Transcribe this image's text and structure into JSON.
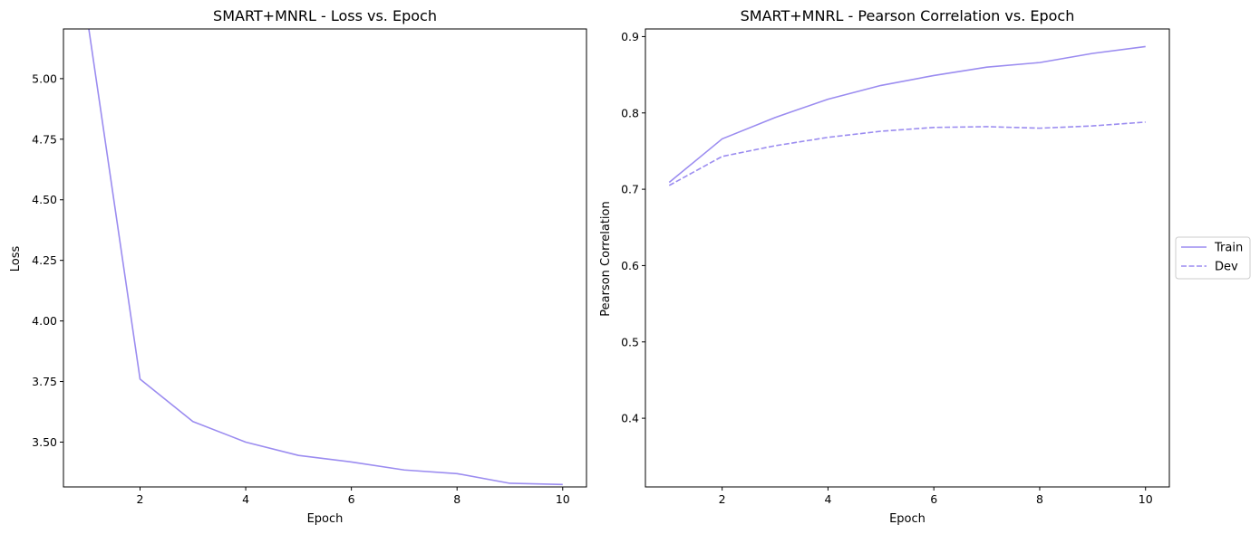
{
  "colors": {
    "series": "#9b8cf0",
    "axis": "#000000",
    "legend_border": "#cccccc",
    "background": "#ffffff"
  },
  "chart_data": [
    {
      "type": "line",
      "title": "SMART+MNRL - Loss vs. Epoch",
      "xlabel": "Epoch",
      "ylabel": "Loss",
      "xlim": [
        0.55,
        10.45
      ],
      "ylim": [
        3.315,
        5.205
      ],
      "xticks": [
        2,
        4,
        6,
        8,
        10
      ],
      "yticks": [
        3.5,
        3.75,
        4.0,
        4.25,
        4.5,
        4.75,
        5.0
      ],
      "ytick_labels": [
        "3.50",
        "3.75",
        "4.00",
        "4.25",
        "4.50",
        "4.75",
        "5.00"
      ],
      "grid": false,
      "x": [
        1,
        2,
        3,
        4,
        5,
        6,
        7,
        8,
        9,
        10
      ],
      "series": [
        {
          "values": [
            5.25,
            3.76,
            3.585,
            3.5,
            3.445,
            3.418,
            3.385,
            3.37,
            3.33,
            3.325
          ],
          "style": "solid"
        }
      ]
    },
    {
      "type": "line",
      "title": "SMART+MNRL - Pearson Correlation vs. Epoch",
      "xlabel": "Epoch",
      "ylabel": "Pearson Correlation",
      "xlim": [
        0.55,
        10.45
      ],
      "ylim": [
        0.31,
        0.91
      ],
      "xticks": [
        2,
        4,
        6,
        8,
        10
      ],
      "yticks": [
        0.4,
        0.5,
        0.6,
        0.7,
        0.8,
        0.9
      ],
      "ytick_labels": [
        "0.4",
        "0.5",
        "0.6",
        "0.7",
        "0.8",
        "0.9"
      ],
      "grid": false,
      "legend": "center-right-outside",
      "x": [
        1,
        2,
        3,
        4,
        5,
        6,
        7,
        8,
        9,
        10
      ],
      "series": [
        {
          "name": "Train",
          "values": [
            0.709,
            0.766,
            0.794,
            0.818,
            0.836,
            0.849,
            0.86,
            0.866,
            0.878,
            0.887
          ],
          "style": "solid"
        },
        {
          "name": "Dev",
          "values": [
            0.705,
            0.743,
            0.757,
            0.768,
            0.776,
            0.781,
            0.782,
            0.78,
            0.783,
            0.788
          ],
          "style": "dashed"
        }
      ]
    }
  ]
}
